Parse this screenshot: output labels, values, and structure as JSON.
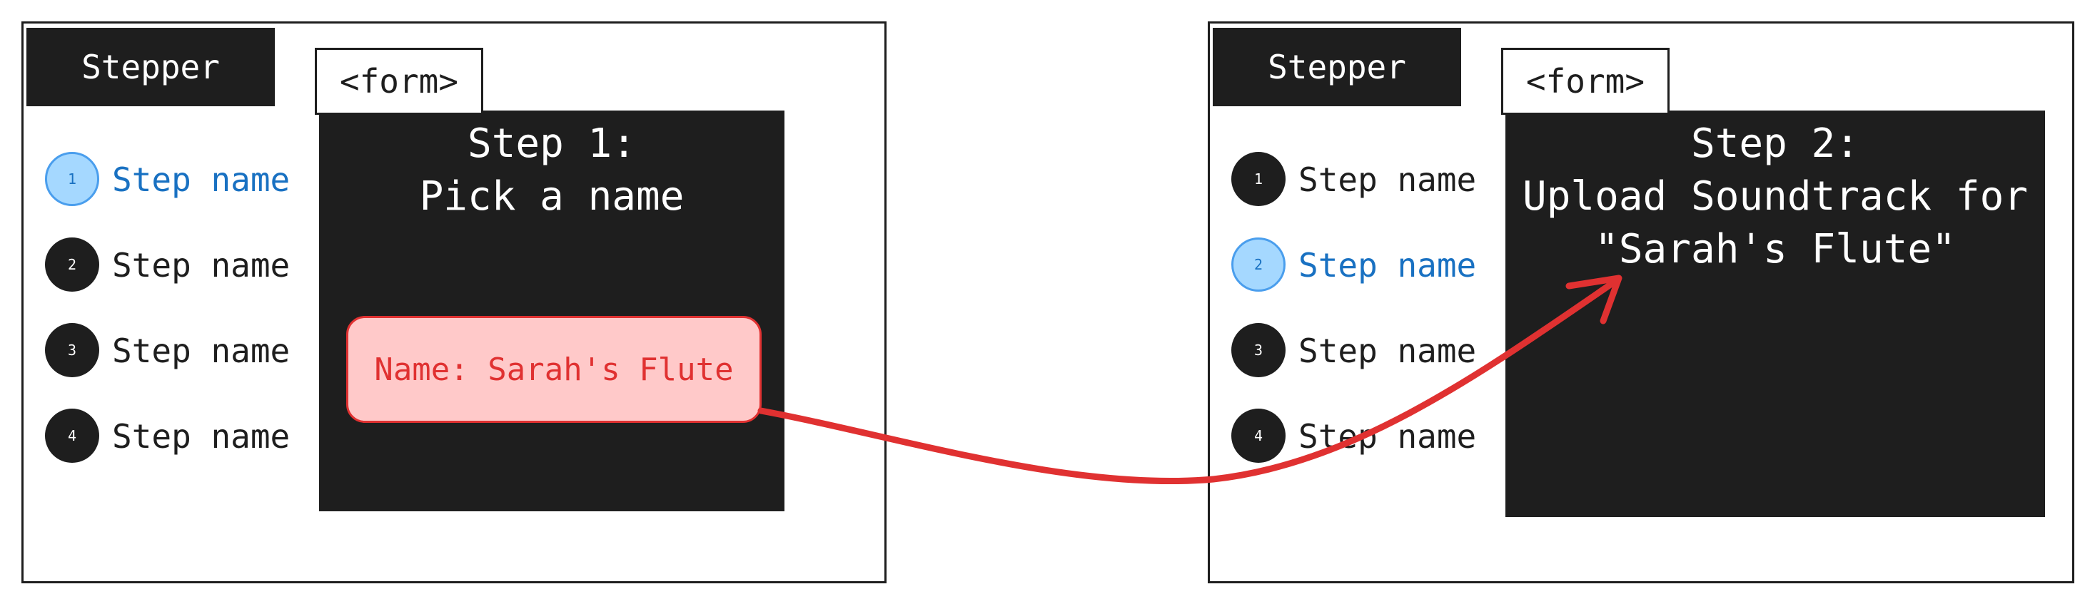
{
  "colors": {
    "ink": "#1e1e1e",
    "active_step_fill": "#a5d8ff",
    "active_step_text": "#1971c2",
    "highlight_fill": "#ffc9c9",
    "arrow": "#e03131"
  },
  "left_panel": {
    "stepper_title": "Stepper",
    "form_tab": "<form>",
    "form_title_line1": "Step 1:",
    "form_title_line2": "Pick a name",
    "name_chip": "Name: Sarah's Flute",
    "steps": [
      {
        "number": "1",
        "label": "Step name",
        "active": true
      },
      {
        "number": "2",
        "label": "Step name",
        "active": false
      },
      {
        "number": "3",
        "label": "Step name",
        "active": false
      },
      {
        "number": "4",
        "label": "Step name",
        "active": false
      }
    ]
  },
  "right_panel": {
    "stepper_title": "Stepper",
    "form_tab": "<form>",
    "form_title_line1": "Step 2:",
    "form_title_line2": "Upload Soundtrack for",
    "form_title_line3": "\"Sarah's Flute\"",
    "steps": [
      {
        "number": "1",
        "label": "Step name",
        "active": false
      },
      {
        "number": "2",
        "label": "Step name",
        "active": true
      },
      {
        "number": "3",
        "label": "Step name",
        "active": false
      },
      {
        "number": "4",
        "label": "Step name",
        "active": false
      }
    ]
  }
}
